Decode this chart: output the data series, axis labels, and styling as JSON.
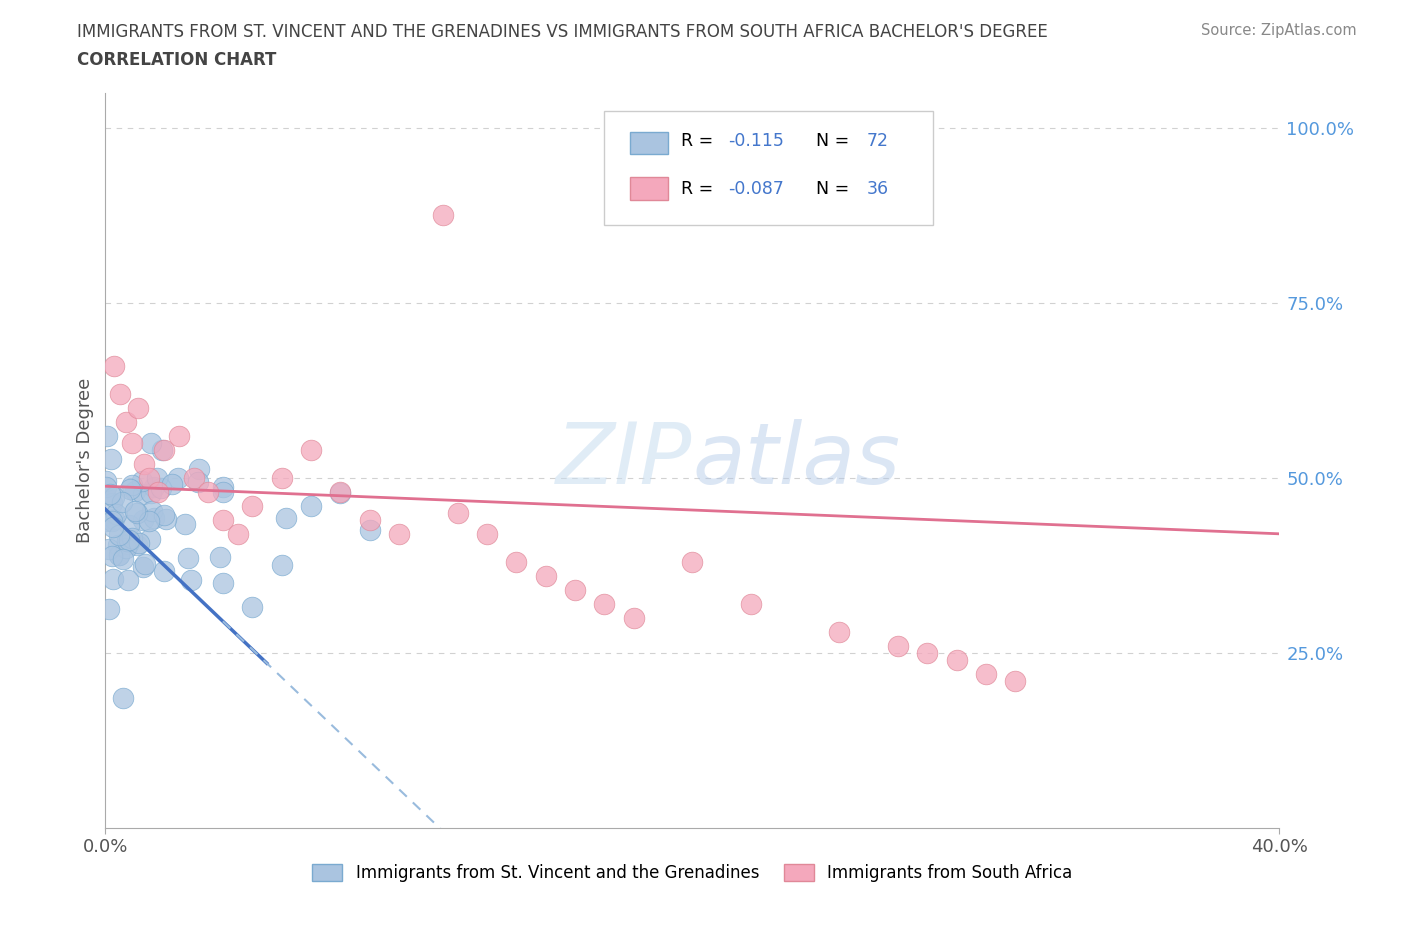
{
  "title_line1": "IMMIGRANTS FROM ST. VINCENT AND THE GRENADINES VS IMMIGRANTS FROM SOUTH AFRICA BACHELOR'S DEGREE",
  "title_line2": "CORRELATION CHART",
  "source": "Source: ZipAtlas.com",
  "ylabel": "Bachelor's Degree",
  "series1": {
    "name": "Immigrants from St. Vincent and the Grenadines",
    "color": "#aac4e0",
    "edge_color": "#7aaad0",
    "line_color": "#4472c4",
    "dash_color": "#99bbdd",
    "R": -0.115,
    "N": 72
  },
  "series2": {
    "name": "Immigrants from South Africa",
    "color": "#f4a8bc",
    "edge_color": "#e08898",
    "line_color": "#e07090",
    "R": -0.087,
    "N": 36
  },
  "xlim": [
    0.0,
    0.4
  ],
  "ylim": [
    0.0,
    1.05
  ],
  "x_ticks": [
    0.0,
    0.4
  ],
  "x_tick_labels": [
    "0.0%",
    "40.0%"
  ],
  "y_ticks_right": [
    0.25,
    0.5,
    0.75,
    1.0
  ],
  "y_tick_labels_right": [
    "25.0%",
    "50.0%",
    "75.0%",
    "100.0%"
  ],
  "grid_color": "#cccccc",
  "background_color": "#ffffff",
  "watermark_text": "ZIPatlas",
  "title_color": "#444444",
  "source_color": "#888888",
  "axis_label_color": "#555555",
  "right_tick_color": "#5599dd",
  "legend_R_color": "#cc3333",
  "legend_N_color": "#4477cc"
}
